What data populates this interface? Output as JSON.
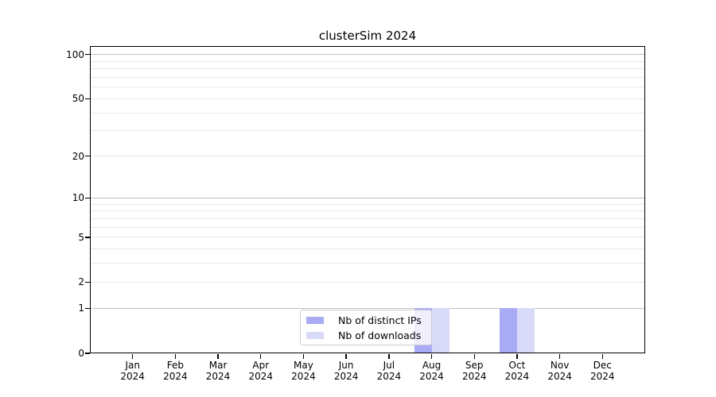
{
  "title": "clusterSim 2024",
  "chart_data": {
    "type": "bar",
    "title": "clusterSim 2024",
    "x_months": [
      "Jan",
      "Feb",
      "Mar",
      "Apr",
      "May",
      "Jun",
      "Jul",
      "Aug",
      "Sep",
      "Oct",
      "Nov",
      "Dec"
    ],
    "x_year": "2024",
    "series": [
      {
        "name": "Nb of distinct IPs",
        "color": "#aaabf5",
        "values": [
          0,
          0,
          0,
          0,
          0,
          0,
          0,
          1,
          0,
          1,
          0,
          0
        ]
      },
      {
        "name": "Nb of downloads",
        "color": "#d9daf8",
        "values": [
          0,
          0,
          0,
          0,
          0,
          0,
          0,
          1,
          0,
          1,
          0,
          0
        ]
      }
    ],
    "yscale": "log1p",
    "ylim": [
      0,
      114
    ],
    "ytick_labels": [
      0,
      1,
      2,
      5,
      10,
      20,
      50,
      100
    ],
    "grid_major": [
      1,
      10,
      100
    ],
    "grid_minor": [
      2,
      3,
      4,
      5,
      6,
      7,
      8,
      9,
      20,
      30,
      40,
      50,
      60,
      70,
      80,
      90
    ],
    "grid": true,
    "legend_position": "bottom-center-inside"
  },
  "colors": {
    "grid_major": "#c2c2c2",
    "grid_minor": "#e9e9e9",
    "axis": "#000000",
    "legend_border": "#cccccc"
  }
}
